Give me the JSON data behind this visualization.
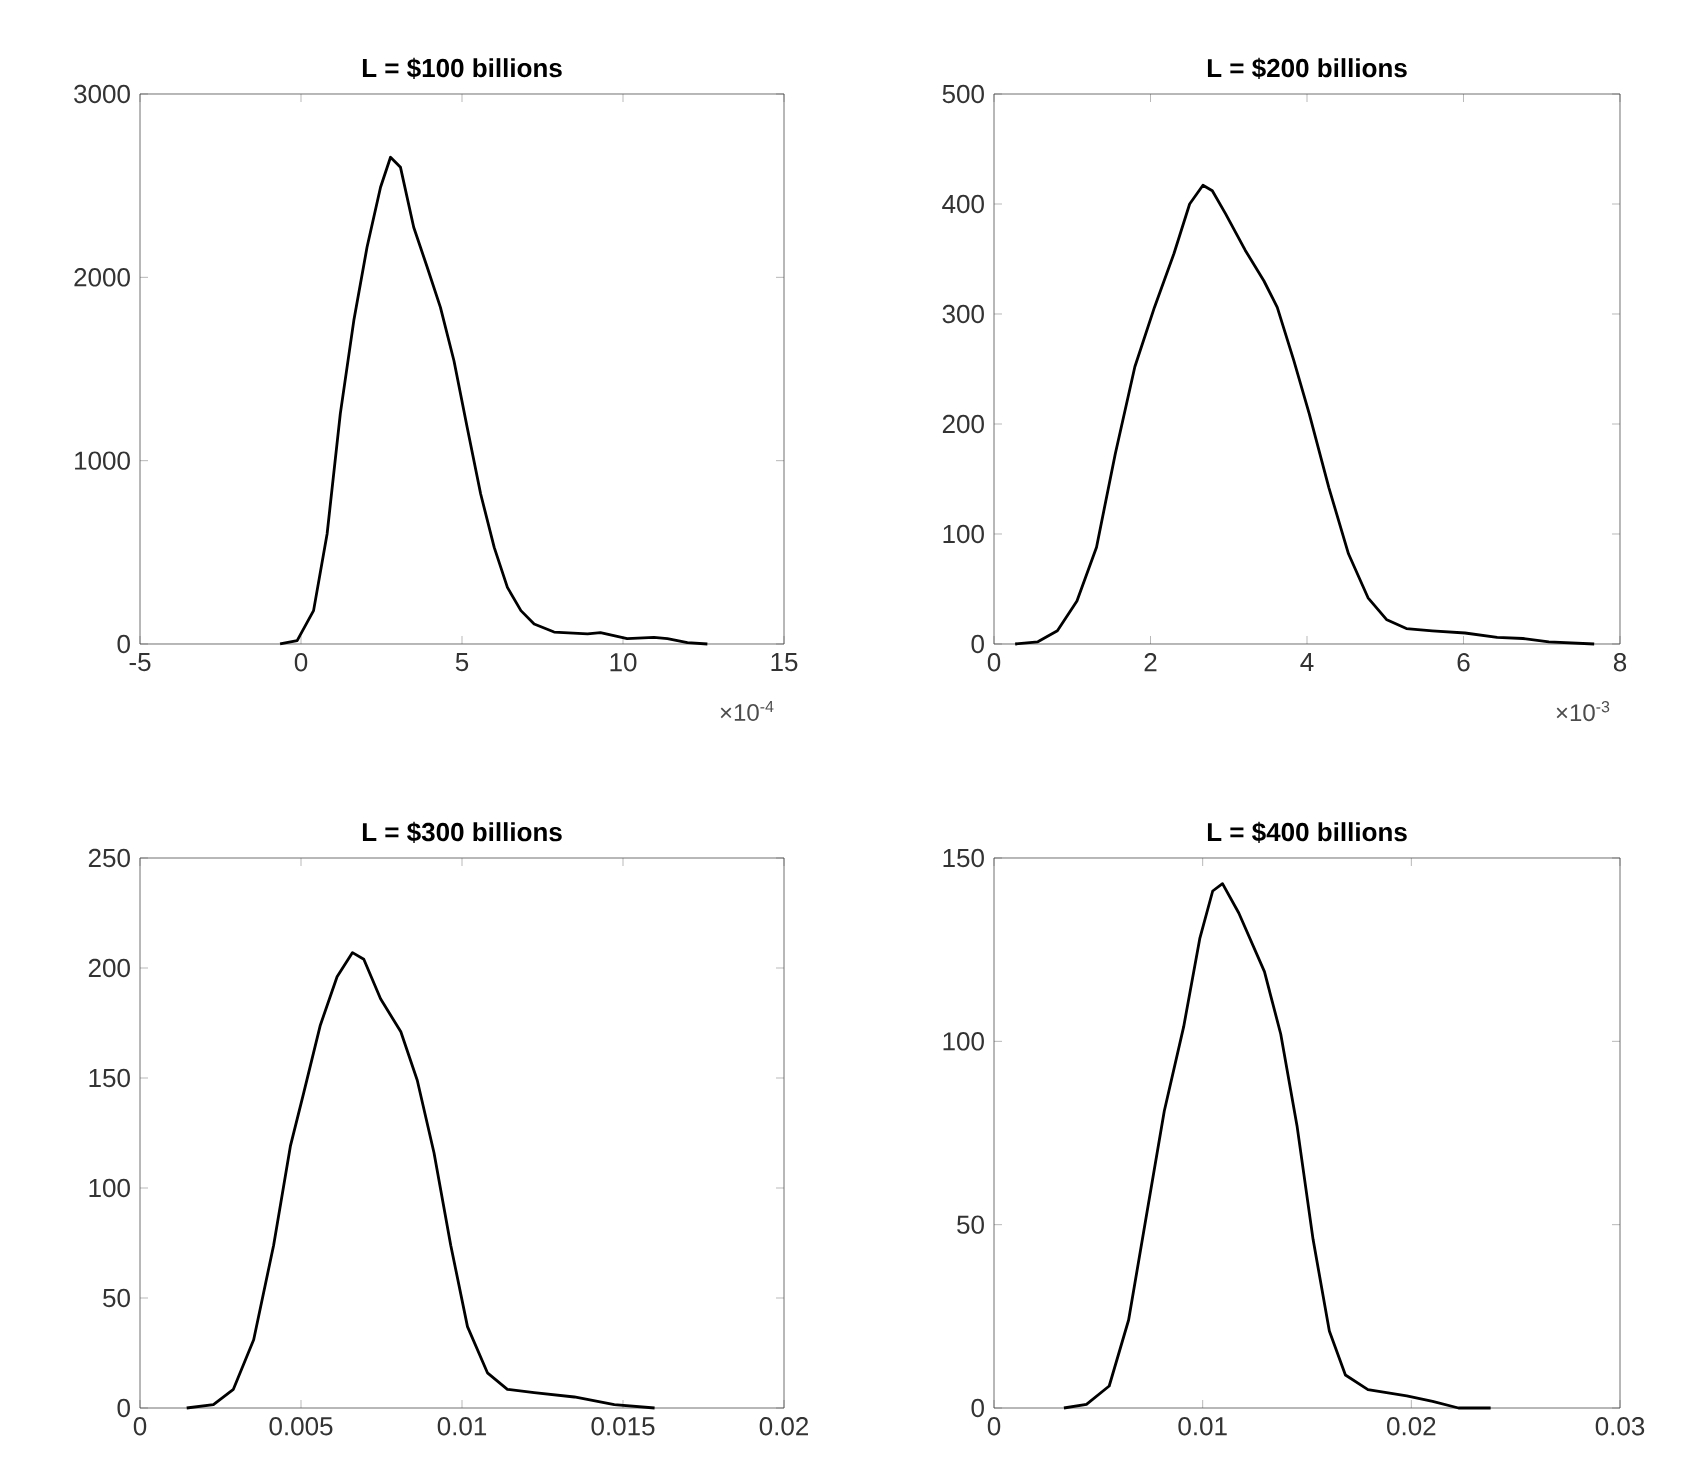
{
  "chart_data": [
    {
      "type": "line",
      "title": "L = $100 billions",
      "annotations": [
        "×10$^{-4}$"
      ],
      "xlim": [
        -5,
        15
      ],
      "xticks": [
        -5,
        0,
        5,
        10,
        15
      ],
      "ylim": [
        0,
        3000
      ],
      "yticks": [
        0,
        1000,
        2000,
        3000
      ],
      "color": "#000000",
      "x": [
        -0.65,
        -0.12,
        0.39,
        0.81,
        1.22,
        1.64,
        2.05,
        2.47,
        2.78,
        3.09,
        3.5,
        3.92,
        4.33,
        4.75,
        5.16,
        5.58,
        6.0,
        6.41,
        6.83,
        7.24,
        7.86,
        8.9,
        9.3,
        10.13,
        10.96,
        11.38,
        12.0,
        12.62
      ],
      "values": [
        0,
        18,
        182,
        600,
        1255,
        1764,
        2164,
        2491,
        2655,
        2600,
        2273,
        2055,
        1836,
        1545,
        1182,
        818,
        527,
        309,
        182,
        109,
        65,
        55,
        62,
        29,
        36,
        29,
        7,
        0
      ]
    },
    {
      "type": "line",
      "title": "L = $200 billions",
      "annotations": [
        "×10$^{-3}$"
      ],
      "xlim": [
        0,
        8
      ],
      "xticks": [
        0,
        2,
        4,
        6,
        8
      ],
      "ylim": [
        0,
        500
      ],
      "yticks": [
        0,
        100,
        200,
        300,
        400,
        500
      ],
      "color": "#000000",
      "x": [
        0.27,
        0.56,
        0.81,
        1.06,
        1.31,
        1.55,
        1.8,
        2.05,
        2.3,
        2.5,
        2.67,
        2.79,
        2.96,
        3.21,
        3.45,
        3.62,
        3.83,
        4.03,
        4.28,
        4.53,
        4.78,
        5.02,
        5.27,
        5.6,
        6.02,
        6.43,
        6.76,
        7.09,
        7.67
      ],
      "values": [
        0,
        2,
        12,
        39,
        88,
        173,
        252,
        306,
        355,
        400,
        417,
        412,
        391,
        358,
        330,
        306,
        258,
        209,
        142,
        82,
        42,
        22,
        14,
        12,
        10,
        6,
        5,
        2,
        0
      ]
    },
    {
      "type": "line",
      "title": "L = $300 billions",
      "xlim": [
        0,
        0.02
      ],
      "xticks": [
        0,
        0.005,
        0.01,
        0.015,
        0.02
      ],
      "ylim": [
        0,
        250
      ],
      "yticks": [
        0,
        50,
        100,
        150,
        200,
        250
      ],
      "color": "#000000",
      "x": [
        0.00145,
        0.00228,
        0.0029,
        0.00353,
        0.00415,
        0.00467,
        0.00508,
        0.0056,
        0.00612,
        0.0066,
        0.00695,
        0.00747,
        0.0081,
        0.00861,
        0.00913,
        0.00965,
        0.01017,
        0.01079,
        0.01141,
        0.01224,
        0.01349,
        0.01473,
        0.01598
      ],
      "values": [
        0,
        1.5,
        8.5,
        31,
        74,
        119,
        143,
        174,
        196,
        207,
        204,
        186,
        171,
        149,
        116,
        74,
        37,
        16,
        8.5,
        7,
        5,
        1.5,
        0
      ]
    },
    {
      "type": "line",
      "title": "L = $400 billions",
      "xlim": [
        0,
        0.03
      ],
      "xticks": [
        0,
        0.01,
        0.02,
        0.03
      ],
      "ylim": [
        0,
        150
      ],
      "yticks": [
        0,
        50,
        100,
        150
      ],
      "color": "#000000",
      "x": [
        0.00335,
        0.00443,
        0.00552,
        0.00645,
        0.00738,
        0.00816,
        0.00909,
        0.00986,
        0.01048,
        0.01095,
        0.01173,
        0.01296,
        0.01374,
        0.01452,
        0.01529,
        0.01607,
        0.01684,
        0.01792,
        0.01978,
        0.02102,
        0.02226,
        0.0238
      ],
      "values": [
        0,
        1,
        6,
        24,
        55,
        81,
        104,
        128,
        141,
        143,
        135,
        119,
        102,
        77,
        46,
        21,
        9,
        5,
        3.3,
        1.8,
        0,
        0
      ]
    }
  ]
}
